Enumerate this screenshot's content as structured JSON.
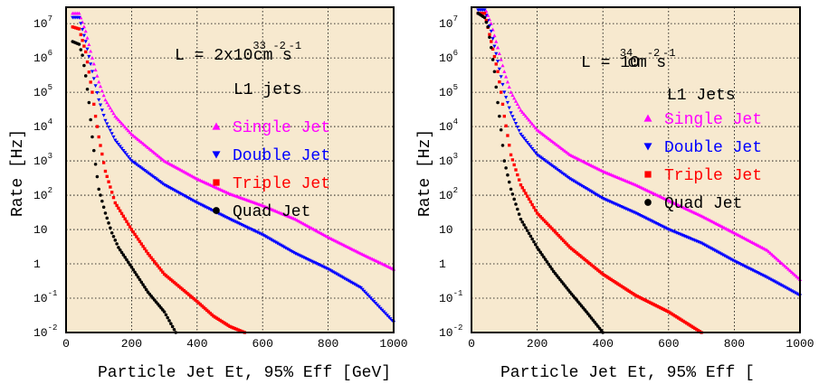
{
  "colors": {
    "background": "#f7e9cf",
    "frame": "#000000",
    "grid": "#000000",
    "single": "#ff00ff",
    "double": "#0000ff",
    "triple": "#ff0000",
    "quad": "#000000"
  },
  "chart_data": [
    {
      "type": "scatter",
      "y_scale": "log",
      "xlim": [
        0,
        1000
      ],
      "ylim": [
        0.01,
        30000000
      ],
      "grid": true,
      "xlabel": "Particle Jet Et, 95% Eff [GeV]",
      "ylabel": "Rate [Hz]",
      "x_ticks": [
        "0",
        "200",
        "400",
        "600",
        "800",
        "1000"
      ],
      "y_ticks": [
        {
          "base": "10",
          "sup": "-2"
        },
        {
          "base": "10",
          "sup": "-1"
        },
        {
          "base": "1",
          "sup": ""
        },
        {
          "base": "10",
          "sup": ""
        },
        {
          "base": "10",
          "sup": "2"
        },
        {
          "base": "10",
          "sup": "3"
        },
        {
          "base": "10",
          "sup": "4"
        },
        {
          "base": "10",
          "sup": "5"
        },
        {
          "base": "10",
          "sup": "6"
        },
        {
          "base": "10",
          "sup": "7"
        }
      ],
      "lumi_text": {
        "prefix": "L = 2x10",
        "exp": "33",
        "unit": "cm",
        "unit_exp": "-2",
        "s": "s",
        "s_exp": "-1"
      },
      "label": "L1 jets",
      "legend_placement": "right-middle",
      "series": [
        {
          "name": "Single Jet",
          "marker": "triangle-up",
          "color_key": "single",
          "points": [
            [
              20,
              20000000
            ],
            [
              40,
              20000000
            ],
            [
              60,
              6000000
            ],
            [
              80,
              1000000
            ],
            [
              100,
              200000
            ],
            [
              120,
              60000
            ],
            [
              150,
              20000
            ],
            [
              200,
              6000
            ],
            [
              300,
              1000
            ],
            [
              400,
              300
            ],
            [
              500,
              110
            ],
            [
              600,
              50
            ],
            [
              700,
              20
            ],
            [
              800,
              6
            ],
            [
              900,
              2
            ],
            [
              1000,
              0.7
            ]
          ]
        },
        {
          "name": "Double Jet",
          "marker": "triangle-down",
          "color_key": "double",
          "points": [
            [
              20,
              15000000
            ],
            [
              40,
              15000000
            ],
            [
              60,
              3000000
            ],
            [
              80,
              400000
            ],
            [
              100,
              60000
            ],
            [
              120,
              15000
            ],
            [
              150,
              4000
            ],
            [
              200,
              1000
            ],
            [
              300,
              200
            ],
            [
              400,
              60
            ],
            [
              500,
              20
            ],
            [
              600,
              7
            ],
            [
              700,
              2
            ],
            [
              800,
              0.7
            ],
            [
              900,
              0.2
            ],
            [
              1000,
              0.02
            ]
          ]
        },
        {
          "name": "Triple Jet",
          "marker": "square",
          "color_key": "triple",
          "points": [
            [
              20,
              8000000
            ],
            [
              40,
              7000000
            ],
            [
              60,
              1500000
            ],
            [
              80,
              100000
            ],
            [
              90,
              20000
            ],
            [
              100,
              5000
            ],
            [
              120,
              500
            ],
            [
              150,
              60
            ],
            [
              200,
              10
            ],
            [
              250,
              2
            ],
            [
              300,
              0.5
            ],
            [
              350,
              0.2
            ],
            [
              400,
              0.08
            ],
            [
              450,
              0.03
            ],
            [
              500,
              0.015
            ],
            [
              545,
              0.01
            ]
          ]
        },
        {
          "name": "Quad Jet",
          "marker": "circle",
          "color_key": "quad",
          "points": [
            [
              20,
              3000000
            ],
            [
              40,
              2500000
            ],
            [
              50,
              1200000
            ],
            [
              60,
              300000
            ],
            [
              70,
              50000
            ],
            [
              80,
              5000
            ],
            [
              90,
              800
            ],
            [
              100,
              150
            ],
            [
              120,
              30
            ],
            [
              140,
              8
            ],
            [
              160,
              3
            ],
            [
              200,
              0.8
            ],
            [
              250,
              0.15
            ],
            [
              300,
              0.04
            ],
            [
              335,
              0.01
            ]
          ]
        }
      ]
    },
    {
      "type": "scatter",
      "y_scale": "log",
      "xlim": [
        0,
        1000
      ],
      "ylim": [
        0.01,
        30000000
      ],
      "grid": true,
      "xlabel": "Particle Jet Et, 95% Eff [",
      "ylabel": "Rate [Hz]",
      "x_ticks": [
        "0",
        "200",
        "400",
        "600",
        "800",
        "1000"
      ],
      "y_ticks": [
        {
          "base": "10",
          "sup": "-2"
        },
        {
          "base": "10",
          "sup": "-1"
        },
        {
          "base": "1",
          "sup": ""
        },
        {
          "base": "10",
          "sup": ""
        },
        {
          "base": "10",
          "sup": "2"
        },
        {
          "base": "10",
          "sup": "3"
        },
        {
          "base": "10",
          "sup": "4"
        },
        {
          "base": "10",
          "sup": "5"
        },
        {
          "base": "10",
          "sup": "6"
        },
        {
          "base": "10",
          "sup": "7"
        }
      ],
      "lumi_text": {
        "prefix": "L = 10",
        "exp": "34",
        "unit": "cm",
        "unit_exp": "-2",
        "s": "s",
        "s_exp": "-1"
      },
      "label": "L1 Jets",
      "legend_placement": "right-middle",
      "series": [
        {
          "name": "Single Jet",
          "marker": "triangle-up",
          "color_key": "single",
          "points": [
            [
              20,
              30000000
            ],
            [
              40,
              30000000
            ],
            [
              60,
              10000000
            ],
            [
              80,
              2000000
            ],
            [
              100,
              400000
            ],
            [
              120,
              100000
            ],
            [
              150,
              30000
            ],
            [
              200,
              8000
            ],
            [
              300,
              1500
            ],
            [
              400,
              500
            ],
            [
              500,
              200
            ],
            [
              600,
              70
            ],
            [
              700,
              25
            ],
            [
              800,
              8
            ],
            [
              900,
              2.5
            ],
            [
              1000,
              0.35
            ]
          ]
        },
        {
          "name": "Double Jet",
          "marker": "triangle-down",
          "color_key": "double",
          "points": [
            [
              20,
              25000000
            ],
            [
              40,
              25000000
            ],
            [
              60,
              6000000
            ],
            [
              80,
              800000
            ],
            [
              100,
              100000
            ],
            [
              120,
              25000
            ],
            [
              150,
              6000
            ],
            [
              200,
              1500
            ],
            [
              300,
              300
            ],
            [
              400,
              80
            ],
            [
              500,
              30
            ],
            [
              600,
              10
            ],
            [
              700,
              4
            ],
            [
              800,
              1.2
            ],
            [
              900,
              0.4
            ],
            [
              1000,
              0.12
            ]
          ]
        },
        {
          "name": "Triple Jet",
          "marker": "square",
          "color_key": "triple",
          "points": [
            [
              20,
              20000000
            ],
            [
              40,
              20000000
            ],
            [
              60,
              3000000
            ],
            [
              80,
              400000
            ],
            [
              90,
              100000
            ],
            [
              100,
              20000
            ],
            [
              120,
              1500
            ],
            [
              150,
              200
            ],
            [
              200,
              30
            ],
            [
              300,
              3
            ],
            [
              400,
              0.5
            ],
            [
              500,
              0.12
            ],
            [
              600,
              0.04
            ],
            [
              650,
              0.02
            ],
            [
              700,
              0.01
            ]
          ]
        },
        {
          "name": "Quad Jet",
          "marker": "circle",
          "color_key": "quad",
          "points": [
            [
              20,
              20000000
            ],
            [
              40,
              15000000
            ],
            [
              50,
              8000000
            ],
            [
              60,
              2000000
            ],
            [
              70,
              400000
            ],
            [
              80,
              50000
            ],
            [
              90,
              8000
            ],
            [
              100,
              1000
            ],
            [
              120,
              150
            ],
            [
              150,
              20
            ],
            [
              200,
              3
            ],
            [
              250,
              0.6
            ],
            [
              300,
              0.15
            ],
            [
              350,
              0.04
            ],
            [
              400,
              0.01
            ]
          ]
        }
      ]
    }
  ]
}
